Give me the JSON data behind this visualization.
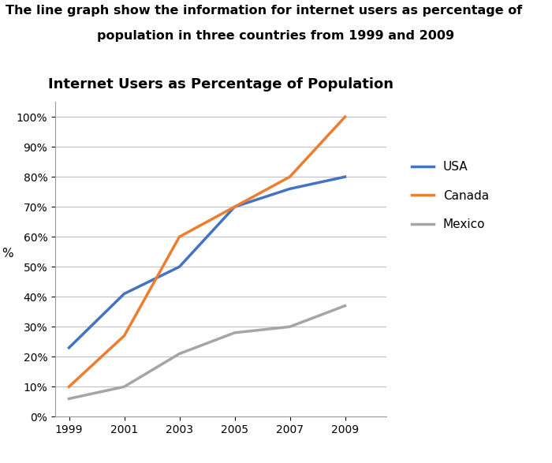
{
  "title": "Internet Users as Percentage of Population",
  "suptitle_line1": "The line graph show the information for internet users as percentage of",
  "suptitle_line2": "population in three countries from 1999 and 2009",
  "years": [
    1999,
    2001,
    2003,
    2005,
    2007,
    2009
  ],
  "usa": [
    23,
    41,
    50,
    70,
    76,
    80
  ],
  "canada": [
    10,
    27,
    60,
    70,
    80,
    100
  ],
  "mexico": [
    6,
    10,
    21,
    28,
    30,
    37
  ],
  "usa_color": "#4472C4",
  "canada_color": "#ED7D31",
  "mexico_color": "#A5A5A5",
  "ylabel": "%",
  "yticks": [
    0,
    10,
    20,
    30,
    40,
    50,
    60,
    70,
    80,
    90,
    100
  ],
  "ytick_labels": [
    "0%",
    "10%",
    "20%",
    "30%",
    "40%",
    "50%",
    "60%",
    "70%",
    "80%",
    "90%",
    "100%"
  ],
  "xticks": [
    1999,
    2001,
    2003,
    2005,
    2007,
    2009
  ],
  "xlim": [
    1998.5,
    2010.5
  ],
  "ylim": [
    0,
    105
  ],
  "line_width": 2.5,
  "background_color": "#ffffff",
  "grid_color": "#C0C0C0",
  "legend_labels": [
    "USA",
    "Canada",
    "Mexico"
  ]
}
